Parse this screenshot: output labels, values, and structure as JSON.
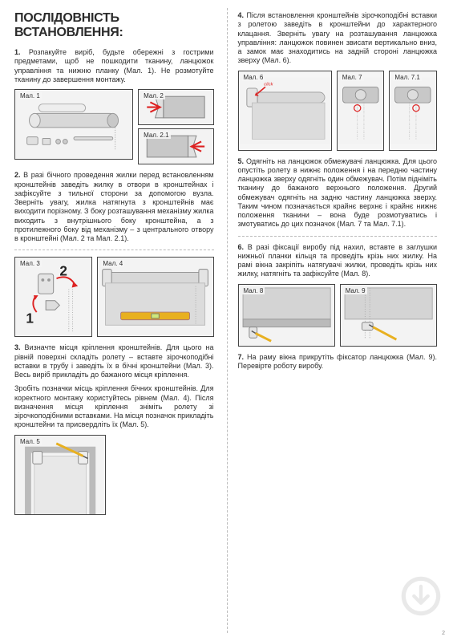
{
  "title": "ПОСЛІДОВНІСТЬ ВСТАНОВЛЕННЯ:",
  "page_number": "2",
  "left": {
    "p1": "<b>1.</b> Розпакуйте виріб, будьте обережні з гострими предметами, щоб не пошкодити тканину, ланцюжок управління та нижню планку (Мал. 1). Не розмотуйте тканину до завершення монтажу.",
    "fig1_label": "Мал. 1",
    "fig2_label": "Мал. 2",
    "fig21_label": "Мал. 2.1",
    "p2": "<b>2.</b> В разі бічного проведення жилки перед встановленням кронштейнів заведіть жилку в отвори в кронштейнах і зафіксуйте з тильної сторони за допомогою вузла. Зверніть увагу, жилка натягнута з кронштейнів має виходити порізному. З боку розташування механізму жилка виходить з внутрішнього боку кронштейна, а з протилежного боку від механізму – з центрального отвору в кронштейні (Мал. 2 та Мал. 2.1).",
    "fig3_label": "Мал. 3",
    "fig4_label": "Мал. 4",
    "p3a": "<b>3.</b> Визначте місця кріплення кронштейнів. Для цього на рівній поверхні складіть ролету – вставте зірочкоподібні вставки в трубу і заведіть їх в бічні кронштейни (Мал. 3). Весь виріб прикладіть до бажаного місця кріплення.",
    "p3b": "Зробіть позначки місць кріплення бічних кронштейнів. Для коректного монтажу користуйтесь рівнем (Мал. 4). Після визначення місця кріплення зніміть ролету зі зірочкоподібними вставками. На місця позначок прикладіть кронштейни та присвердліть їх (Мал. 5).",
    "fig5_label": "Мал. 5"
  },
  "right": {
    "p4": "<b>4.</b> Після встановлення кронштейнів зірочкоподібні вставки з ролетою заведіть в кронштейни до характерного клацання. Зверніть увагу на розташування ланцюжка управління: ланцюжок повинен звисати вертикально вниз, а замок має знаходитись на задній стороні ланцюжка зверху (Мал. 6).",
    "fig6_label": "Мал. 6",
    "fig7_label": "Мал. 7",
    "fig71_label": "Мал. 7.1",
    "click_label": "click",
    "p5": "<b>5.</b> Одягніть на ланцюжок обмежувачі ланцюжка. Для цього опустіть ролету в нижнє положення і на передню частину ланцюжка зверху одягніть один обмежувач. Потім підніміть тканину до бажаного верхнього положення. Другий обмежувач одягніть на задню частину ланцюжка зверху. Таким чином позначається крайнє верхнє і крайнє нижнє положення тканини – вона буде розмотуватись і змотуватись до цих позначок (Мал. 7 та Мал. 7.1).",
    "p6": "<b>6.</b> В разі фіксації виробу під нахил, вставте в заглушки нижньої планки кільця та проведіть крізь них жилку. На рамі вікна закріпіть натягувачі жилки, проведіть крізь них жилку, натягніть та зафіксуйте (Мал. 8).",
    "fig8_label": "Мал. 8",
    "fig9_label": "Мал. 9",
    "p7": "<b>7.</b> На раму вікна прикрутіть фіксатор ланцюжка (Мал. 9). Перевірте роботу виробу."
  },
  "colors": {
    "text": "#2b2b2b",
    "red": "#d22d2d",
    "grey_light": "#d8d8d8",
    "grey_mid": "#bcbcbc",
    "grey_dark": "#8a8a8a",
    "border": "#444",
    "yellow": "#e8b020"
  }
}
